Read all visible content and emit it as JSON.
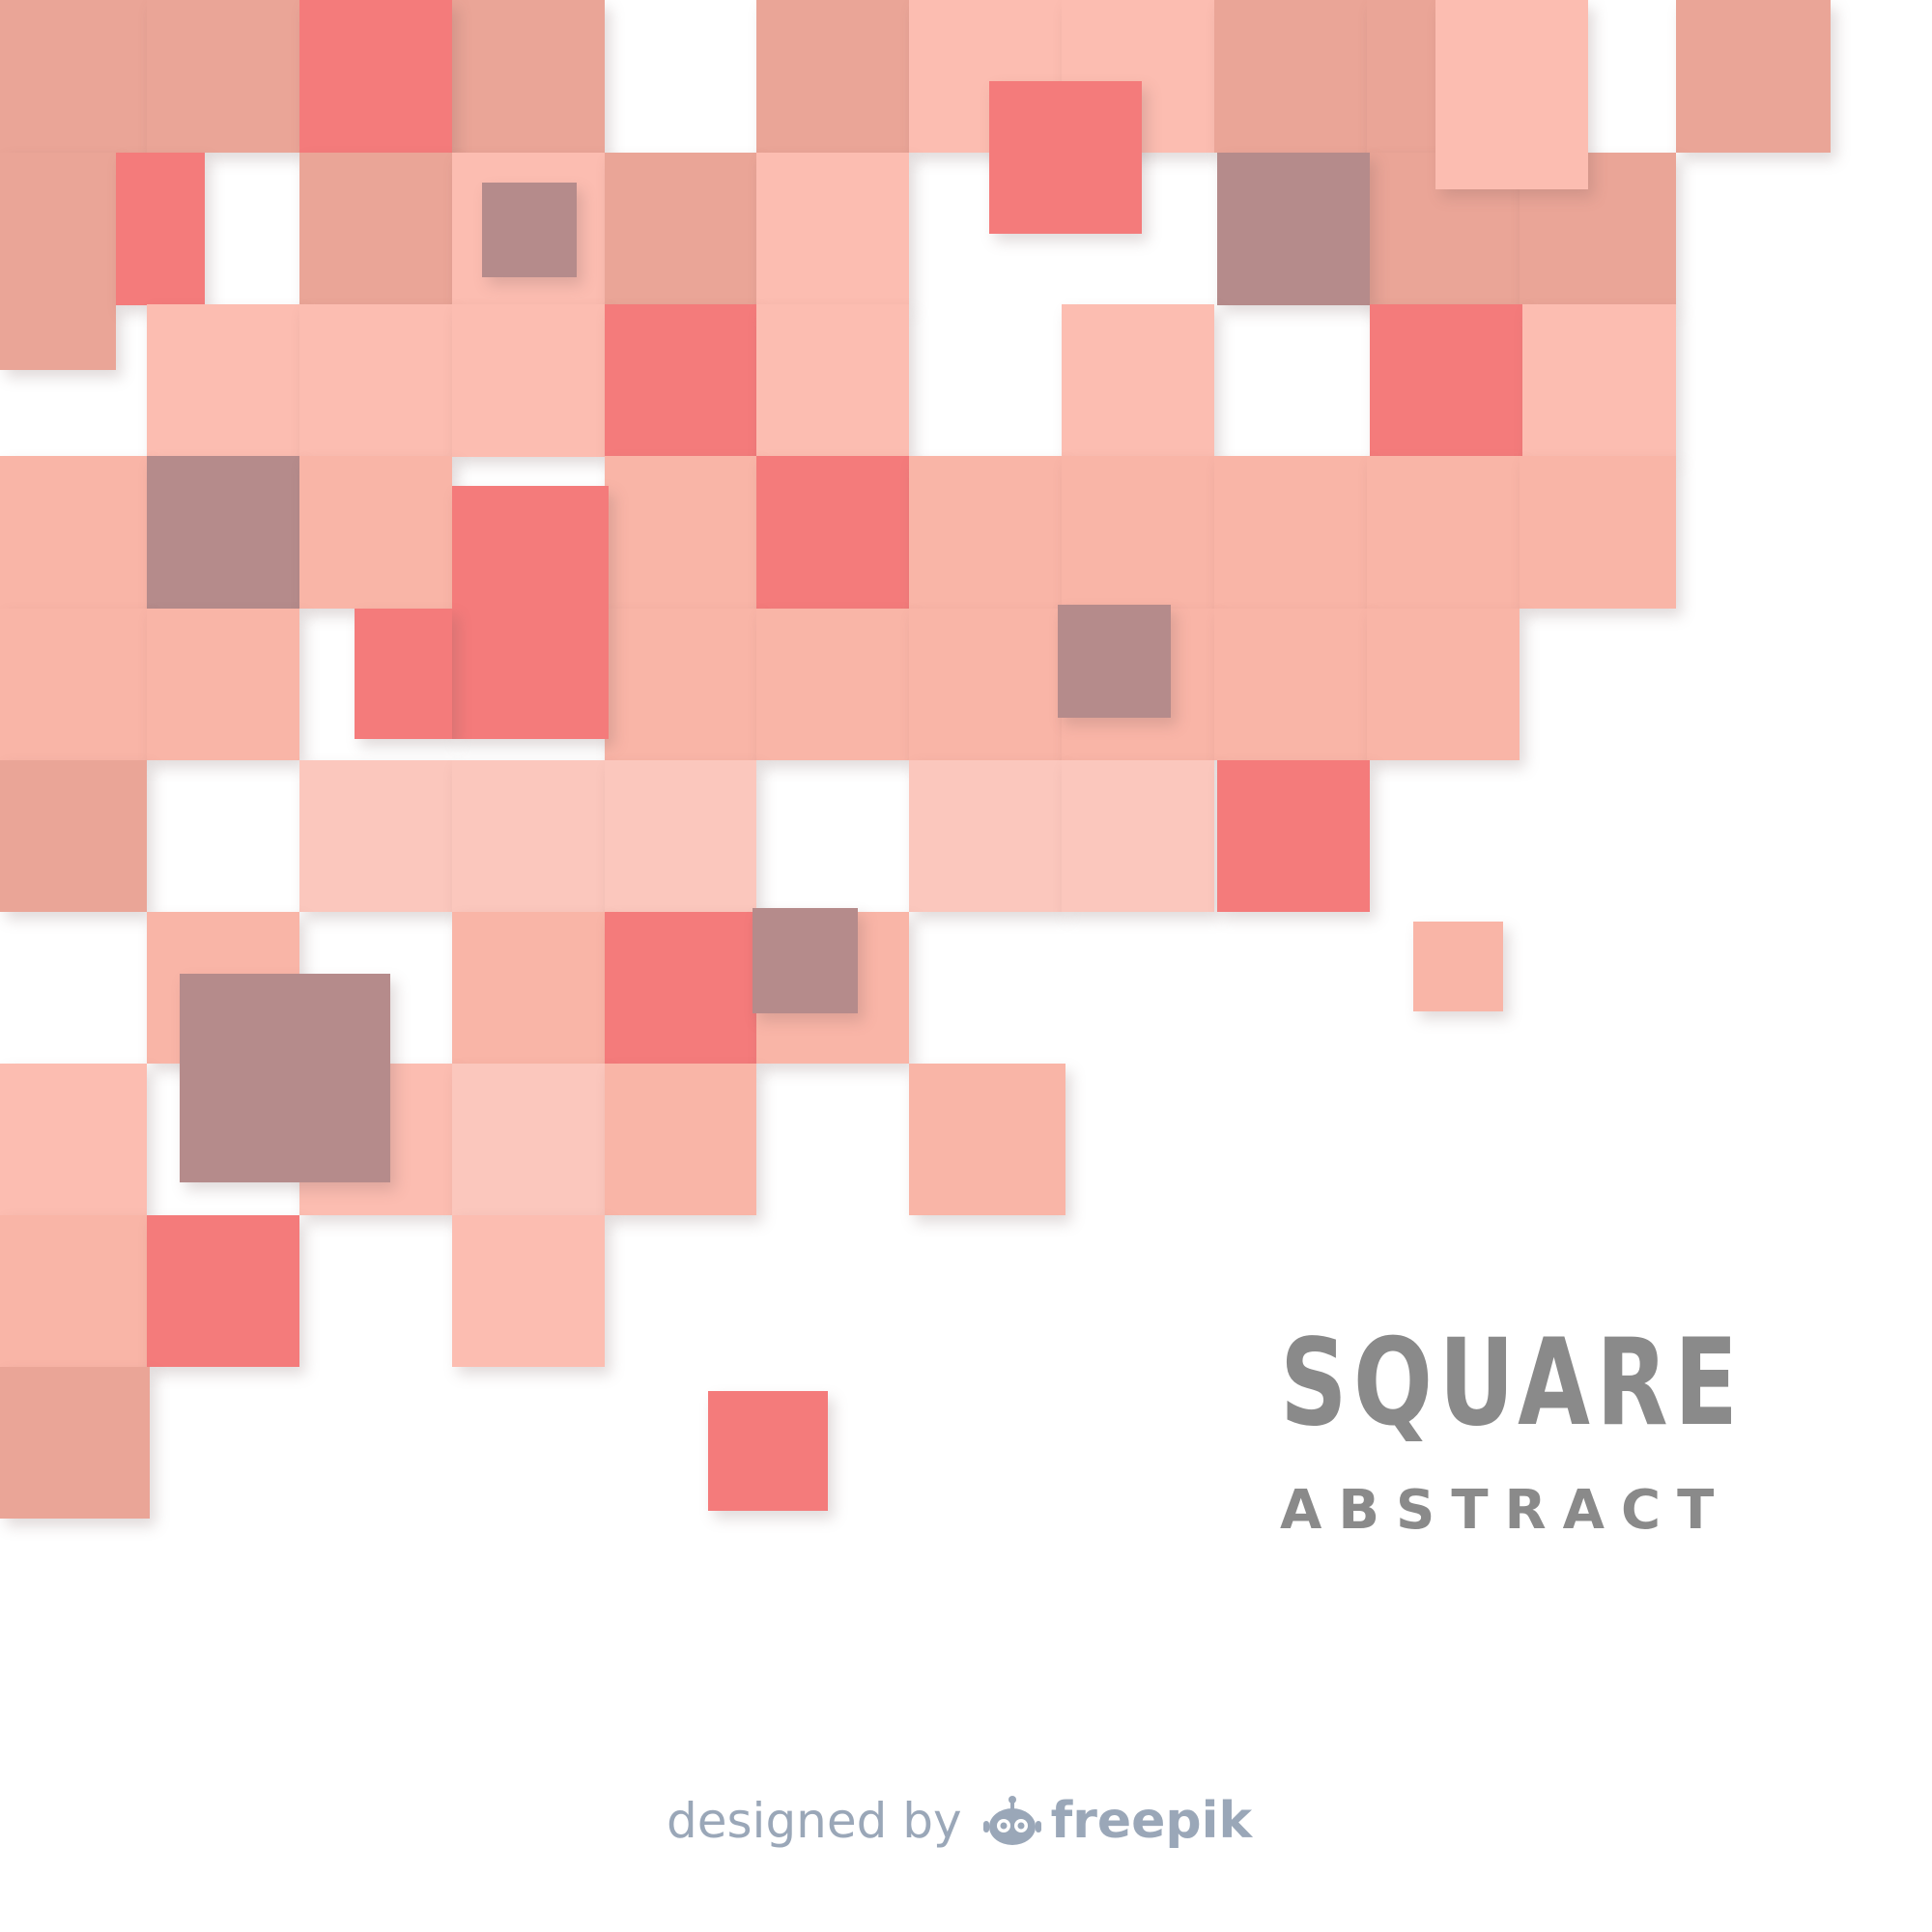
{
  "palette": {
    "dusty_rose": "#eaa597",
    "pale_salmon": "#fcbdb1",
    "peach": "#f9b5a7",
    "blush": "#fbc7bd",
    "coral": "#f47b7b",
    "mauve": "#b58b8b",
    "title_gray": "#8a8a8a",
    "credit_gray": "#9aa7b8"
  },
  "title": {
    "main": "SQUARE",
    "sub": "ABSTRACT"
  },
  "credit": {
    "prefix": "designed by",
    "brand": "freepik",
    "icon": "freepik-robot-icon"
  }
}
